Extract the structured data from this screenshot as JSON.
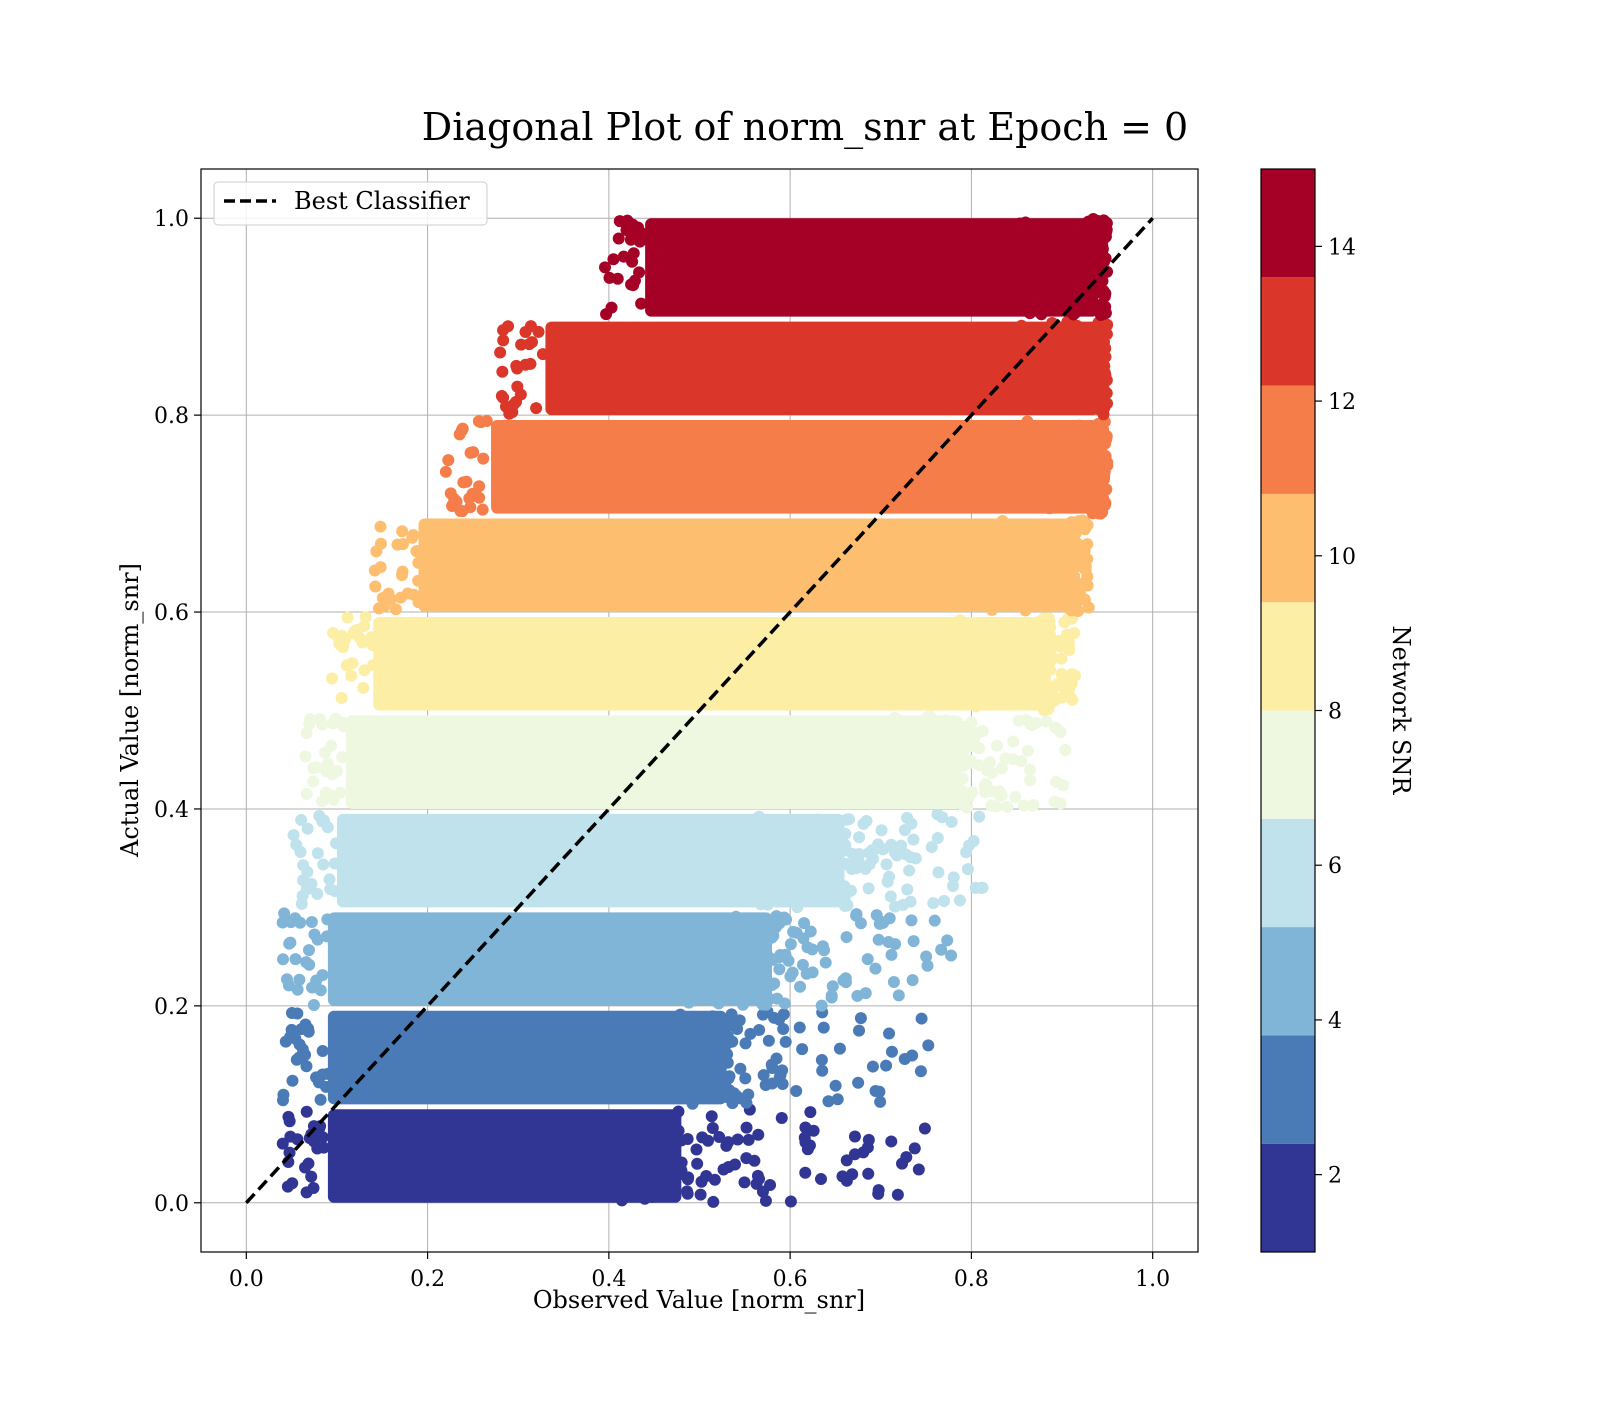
{
  "chart_data": {
    "type": "scatter",
    "title": "Diagonal Plot of norm_snr at Epoch = 0",
    "xlabel": "Observed Value [norm_snr]",
    "ylabel": "Actual Value [norm_snr]",
    "xlim": [
      -0.05,
      1.05
    ],
    "ylim": [
      -0.05,
      1.05
    ],
    "x_ticks": [
      "0.0",
      "0.2",
      "0.4",
      "0.6",
      "0.8",
      "1.0"
    ],
    "y_ticks": [
      "0.0",
      "0.2",
      "0.4",
      "0.6",
      "0.8",
      "1.0"
    ],
    "grid": true,
    "reference_line": {
      "label": "Best Classifier",
      "style": "dashed",
      "color": "#000000",
      "x": [
        0.0,
        1.0
      ],
      "y": [
        0.0,
        1.0
      ]
    },
    "legend": {
      "position": "top-left",
      "entries": [
        "Best Classifier"
      ]
    },
    "colorbar": {
      "label": "Network SNR",
      "range": [
        1,
        15
      ],
      "ticks": [
        "2",
        "4",
        "6",
        "8",
        "10",
        "12",
        "14"
      ],
      "levels": [
        {
          "from": 1,
          "to": 2.4,
          "color": "#313695"
        },
        {
          "from": 2.4,
          "to": 3.8,
          "color": "#4a7bb7"
        },
        {
          "from": 3.8,
          "to": 5.2,
          "color": "#81b5d7"
        },
        {
          "from": 5.2,
          "to": 6.6,
          "color": "#bfe2ec"
        },
        {
          "from": 6.6,
          "to": 8.0,
          "color": "#eef7e0"
        },
        {
          "from": 8.0,
          "to": 9.4,
          "color": "#fdeea6"
        },
        {
          "from": 9.4,
          "to": 10.8,
          "color": "#fdbe70"
        },
        {
          "from": 10.8,
          "to": 12.2,
          "color": "#f57d4a"
        },
        {
          "from": 12.2,
          "to": 13.6,
          "color": "#da372a"
        },
        {
          "from": 13.6,
          "to": 15.0,
          "color": "#a50026"
        }
      ]
    },
    "bands": [
      {
        "y_range": [
          0.0,
          0.095
        ],
        "x_core": [
          0.09,
          0.48
        ],
        "x_tail": 0.75,
        "color": "#313695"
      },
      {
        "y_range": [
          0.1,
          0.195
        ],
        "x_core": [
          0.09,
          0.53
        ],
        "x_tail": 0.76,
        "color": "#4a7bb7"
      },
      {
        "y_range": [
          0.2,
          0.295
        ],
        "x_core": [
          0.09,
          0.58
        ],
        "x_tail": 0.79,
        "color": "#81b5d7"
      },
      {
        "y_range": [
          0.3,
          0.395
        ],
        "x_core": [
          0.1,
          0.66
        ],
        "x_tail": 0.82,
        "color": "#bfe2ec"
      },
      {
        "y_range": [
          0.4,
          0.495
        ],
        "x_core": [
          0.11,
          0.79
        ],
        "x_tail": 0.91,
        "color": "#eef7e0"
      },
      {
        "y_range": [
          0.5,
          0.595
        ],
        "x_core": [
          0.14,
          0.88
        ],
        "x_tail": 0.92,
        "color": "#fdeea6"
      },
      {
        "y_range": [
          0.6,
          0.695
        ],
        "x_core": [
          0.19,
          0.91
        ],
        "x_tail": 0.93,
        "color": "#fdbe70"
      },
      {
        "y_range": [
          0.7,
          0.795
        ],
        "x_core": [
          0.27,
          0.94
        ],
        "x_tail": 0.95,
        "color": "#f57d4a"
      },
      {
        "y_range": [
          0.8,
          0.895
        ],
        "x_core": [
          0.33,
          0.94
        ],
        "x_tail": 0.95,
        "color": "#da372a"
      },
      {
        "y_range": [
          0.9,
          1.0
        ],
        "x_core": [
          0.44,
          0.94
        ],
        "x_tail": 0.95,
        "color": "#a50026"
      }
    ]
  }
}
